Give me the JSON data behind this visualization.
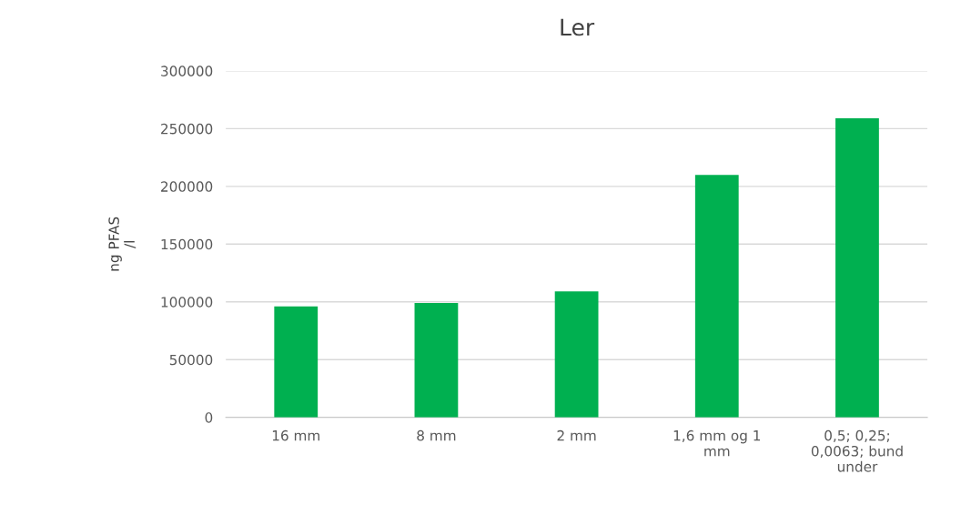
{
  "chart_data": {
    "type": "bar",
    "title": "Ler",
    "ylabel": "ng PFAS\n/l",
    "categories": [
      "16 mm",
      "8 mm",
      "2 mm",
      "1,6 mm og 1\nmm",
      "0,5; 0,25;\n0,0063; bund\nunder"
    ],
    "values": [
      96000,
      99000,
      109000,
      210000,
      259000
    ],
    "color": "#00b050",
    "ylim": [
      0,
      300000
    ],
    "yticks": [
      0,
      50000,
      100000,
      150000,
      200000,
      250000,
      300000
    ],
    "grid": "y"
  }
}
